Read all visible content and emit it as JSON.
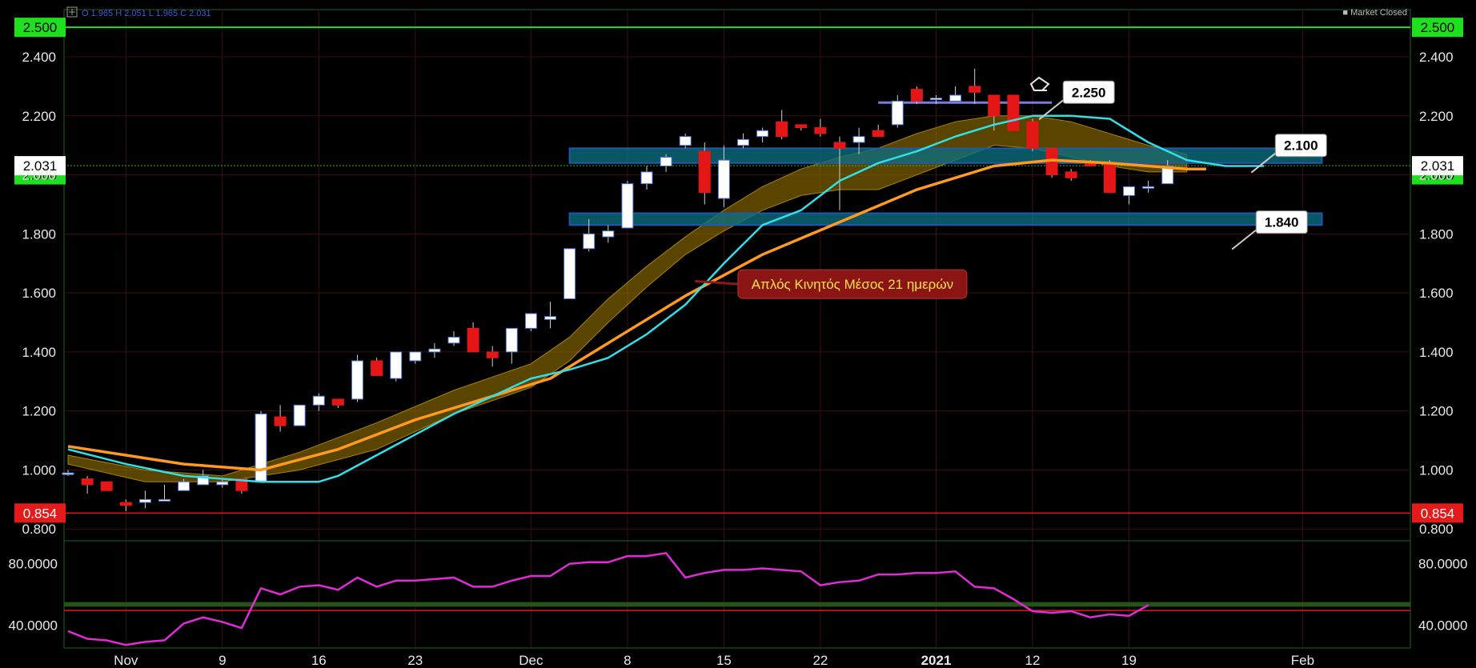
{
  "header": {
    "ohlc_text": "O 1.965  H 2.051  L 1.965  C 2.031",
    "status_text": "■ Market Closed"
  },
  "chart_data": {
    "type": "candlestick",
    "title": "",
    "price_axis": {
      "min": 0.76,
      "max": 2.56,
      "ticks": [
        "2.400",
        "2.200",
        "2.000",
        "1.800",
        "1.600",
        "1.400",
        "1.200",
        "1.000",
        "0.800"
      ]
    },
    "x_labels": [
      {
        "label": "Nov",
        "idx": 3
      },
      {
        "label": "9",
        "idx": 8
      },
      {
        "label": "16",
        "idx": 13
      },
      {
        "label": "23",
        "idx": 18
      },
      {
        "label": "Dec",
        "idx": 24
      },
      {
        "label": "8",
        "idx": 29
      },
      {
        "label": "15",
        "idx": 34
      },
      {
        "label": "22",
        "idx": 39
      },
      {
        "label": "2021",
        "idx": 45
      },
      {
        "label": "12",
        "idx": 50
      },
      {
        "label": "19",
        "idx": 55
      },
      {
        "label": "Feb",
        "idx": 64
      }
    ],
    "candles": [
      [
        0.99,
        1.0,
        0.98,
        0.99
      ],
      [
        0.97,
        0.98,
        0.92,
        0.95
      ],
      [
        0.96,
        0.96,
        0.93,
        0.93
      ],
      [
        0.89,
        0.9,
        0.86,
        0.88
      ],
      [
        0.89,
        0.93,
        0.87,
        0.9
      ],
      [
        0.9,
        0.95,
        0.9,
        0.9
      ],
      [
        0.93,
        0.97,
        0.93,
        0.96
      ],
      [
        0.95,
        1.0,
        0.95,
        0.98
      ],
      [
        0.95,
        0.97,
        0.94,
        0.96
      ],
      [
        0.97,
        0.97,
        0.92,
        0.93
      ],
      [
        0.96,
        1.2,
        0.96,
        1.19
      ],
      [
        1.18,
        1.22,
        1.13,
        1.15
      ],
      [
        1.15,
        1.22,
        1.15,
        1.22
      ],
      [
        1.22,
        1.26,
        1.2,
        1.25
      ],
      [
        1.24,
        1.24,
        1.21,
        1.22
      ],
      [
        1.24,
        1.39,
        1.23,
        1.37
      ],
      [
        1.37,
        1.38,
        1.32,
        1.32
      ],
      [
        1.31,
        1.4,
        1.3,
        1.4
      ],
      [
        1.37,
        1.4,
        1.36,
        1.4
      ],
      [
        1.4,
        1.43,
        1.38,
        1.41
      ],
      [
        1.43,
        1.47,
        1.42,
        1.45
      ],
      [
        1.48,
        1.5,
        1.4,
        1.4
      ],
      [
        1.4,
        1.42,
        1.35,
        1.38
      ],
      [
        1.4,
        1.48,
        1.36,
        1.48
      ],
      [
        1.48,
        1.53,
        1.47,
        1.53
      ],
      [
        1.51,
        1.57,
        1.48,
        1.52
      ],
      [
        1.58,
        1.75,
        1.58,
        1.75
      ],
      [
        1.75,
        1.85,
        1.74,
        1.8
      ],
      [
        1.79,
        1.83,
        1.77,
        1.81
      ],
      [
        1.82,
        1.98,
        1.82,
        1.97
      ],
      [
        1.97,
        2.03,
        1.95,
        2.01
      ],
      [
        2.03,
        2.07,
        2.01,
        2.06
      ],
      [
        2.1,
        2.14,
        2.09,
        2.13
      ],
      [
        2.08,
        2.11,
        1.9,
        1.94
      ],
      [
        1.92,
        2.1,
        1.89,
        2.05
      ],
      [
        2.1,
        2.14,
        2.09,
        2.12
      ],
      [
        2.13,
        2.16,
        2.11,
        2.15
      ],
      [
        2.18,
        2.22,
        2.12,
        2.13
      ],
      [
        2.17,
        2.17,
        2.15,
        2.16
      ],
      [
        2.16,
        2.19,
        2.13,
        2.14
      ],
      [
        2.11,
        2.13,
        1.88,
        2.09
      ],
      [
        2.11,
        2.16,
        2.07,
        2.13
      ],
      [
        2.15,
        2.17,
        2.13,
        2.13
      ],
      [
        2.17,
        2.27,
        2.16,
        2.25
      ],
      [
        2.29,
        2.3,
        2.24,
        2.25
      ],
      [
        2.26,
        2.27,
        2.24,
        2.26
      ],
      [
        2.25,
        2.3,
        2.25,
        2.27
      ],
      [
        2.3,
        2.36,
        2.24,
        2.28
      ],
      [
        2.27,
        2.27,
        2.15,
        2.2
      ],
      [
        2.27,
        2.27,
        2.15,
        2.15
      ],
      [
        2.18,
        2.19,
        2.08,
        2.09
      ],
      [
        2.09,
        2.09,
        1.99,
        2.0
      ],
      [
        2.01,
        2.02,
        1.98,
        1.99
      ],
      [
        2.04,
        2.05,
        2.03,
        2.03
      ],
      [
        2.04,
        2.05,
        1.94,
        1.94
      ],
      [
        1.93,
        1.96,
        1.9,
        1.96
      ],
      [
        1.96,
        1.98,
        1.94,
        1.96
      ],
      [
        1.97,
        2.05,
        1.97,
        2.03
      ]
    ],
    "ma_orange": [
      [
        0,
        1.08
      ],
      [
        3,
        1.05
      ],
      [
        6,
        1.02
      ],
      [
        10,
        1.0
      ],
      [
        14,
        1.07
      ],
      [
        18,
        1.17
      ],
      [
        22,
        1.25
      ],
      [
        25,
        1.31
      ],
      [
        28,
        1.43
      ],
      [
        32,
        1.59
      ],
      [
        36,
        1.73
      ],
      [
        40,
        1.84
      ],
      [
        44,
        1.95
      ],
      [
        48,
        2.03
      ],
      [
        51,
        2.05
      ],
      [
        54,
        2.04
      ],
      [
        58,
        2.02
      ],
      [
        59,
        2.02
      ]
    ],
    "ma_cyan": [
      [
        0,
        1.07
      ],
      [
        3,
        1.02
      ],
      [
        6,
        0.98
      ],
      [
        8,
        0.97
      ],
      [
        10,
        0.96
      ],
      [
        12,
        0.96
      ],
      [
        13,
        0.96
      ],
      [
        14,
        0.98
      ],
      [
        16,
        1.05
      ],
      [
        20,
        1.19
      ],
      [
        24,
        1.31
      ],
      [
        26,
        1.34
      ],
      [
        28,
        1.38
      ],
      [
        30,
        1.46
      ],
      [
        32,
        1.56
      ],
      [
        34,
        1.7
      ],
      [
        36,
        1.83
      ],
      [
        38,
        1.88
      ],
      [
        40,
        1.98
      ],
      [
        42,
        2.04
      ],
      [
        44,
        2.08
      ],
      [
        46,
        2.13
      ],
      [
        48,
        2.17
      ],
      [
        50,
        2.2
      ],
      [
        52,
        2.2
      ],
      [
        54,
        2.19
      ],
      [
        56,
        2.11
      ],
      [
        58,
        2.05
      ],
      [
        60,
        2.03
      ],
      [
        62,
        2.03
      ]
    ],
    "ribbon_upper": [
      [
        0,
        1.05
      ],
      [
        4,
        1.0
      ],
      [
        8,
        0.98
      ],
      [
        12,
        1.06
      ],
      [
        16,
        1.16
      ],
      [
        20,
        1.27
      ],
      [
        24,
        1.36
      ],
      [
        26,
        1.45
      ],
      [
        28,
        1.58
      ],
      [
        30,
        1.69
      ],
      [
        32,
        1.79
      ],
      [
        34,
        1.88
      ],
      [
        36,
        1.96
      ],
      [
        38,
        2.02
      ],
      [
        40,
        2.06
      ],
      [
        42,
        2.09
      ],
      [
        44,
        2.14
      ],
      [
        46,
        2.18
      ],
      [
        48,
        2.2
      ],
      [
        50,
        2.2
      ],
      [
        52,
        2.18
      ],
      [
        54,
        2.14
      ],
      [
        56,
        2.1
      ],
      [
        58,
        2.07
      ]
    ],
    "ribbon_lower": [
      [
        0,
        1.02
      ],
      [
        4,
        0.96
      ],
      [
        8,
        0.96
      ],
      [
        12,
        1.0
      ],
      [
        16,
        1.07
      ],
      [
        20,
        1.19
      ],
      [
        24,
        1.28
      ],
      [
        26,
        1.37
      ],
      [
        28,
        1.5
      ],
      [
        30,
        1.62
      ],
      [
        32,
        1.73
      ],
      [
        34,
        1.81
      ],
      [
        36,
        1.88
      ],
      [
        38,
        1.93
      ],
      [
        40,
        1.95
      ],
      [
        42,
        1.95
      ],
      [
        44,
        2.0
      ],
      [
        46,
        2.05
      ],
      [
        48,
        2.1
      ],
      [
        50,
        2.09
      ],
      [
        52,
        2.06
      ],
      [
        54,
        2.03
      ],
      [
        56,
        2.01
      ],
      [
        58,
        2.01
      ]
    ],
    "levels": {
      "green": {
        "value": 2.5,
        "label": "2.500"
      },
      "green_low": {
        "value": 2.0,
        "label": "2.000"
      },
      "red": {
        "value": 0.854,
        "label": "0.854"
      },
      "current": {
        "value": 2.031,
        "label": "2.031"
      }
    },
    "zones": [
      {
        "low": 2.04,
        "high": 2.09,
        "from": 26,
        "to": 65
      },
      {
        "low": 1.83,
        "high": 1.87,
        "from": 26,
        "to": 65
      }
    ],
    "resistance_line": {
      "value": 2.245,
      "from": 42,
      "to": 51
    },
    "callouts": [
      {
        "label": "2.250",
        "idx": 52,
        "value": 2.28
      },
      {
        "label": "2.100",
        "idx": 63,
        "value": 2.1
      },
      {
        "label": "1.840",
        "idx": 62,
        "value": 1.84
      }
    ],
    "annotation": {
      "text": "Απλός Κινητός Μέσος 21 ημερών",
      "idx": 39.5,
      "value": 1.63,
      "target_idx": 32.5,
      "target_value": 1.64
    },
    "oscillator": {
      "min": 25,
      "max": 95,
      "ticks": [
        "80.0000",
        "40.0000"
      ],
      "band": [
        52,
        55
      ],
      "redline": 49.5,
      "values": [
        [
          0,
          36
        ],
        [
          1,
          31
        ],
        [
          2,
          30
        ],
        [
          3,
          27
        ],
        [
          4,
          29
        ],
        [
          5,
          30
        ],
        [
          6,
          41
        ],
        [
          7,
          45
        ],
        [
          8,
          42
        ],
        [
          9,
          38
        ],
        [
          10,
          64
        ],
        [
          11,
          60
        ],
        [
          12,
          65
        ],
        [
          13,
          66
        ],
        [
          14,
          63
        ],
        [
          15,
          71
        ],
        [
          16,
          65
        ],
        [
          17,
          69
        ],
        [
          18,
          69
        ],
        [
          19,
          70
        ],
        [
          20,
          71
        ],
        [
          21,
          65
        ],
        [
          22,
          65
        ],
        [
          23,
          69
        ],
        [
          24,
          72
        ],
        [
          25,
          72
        ],
        [
          26,
          80
        ],
        [
          27,
          81
        ],
        [
          28,
          81
        ],
        [
          29,
          85
        ],
        [
          30,
          85
        ],
        [
          31,
          87
        ],
        [
          32,
          71
        ],
        [
          33,
          74
        ],
        [
          34,
          76
        ],
        [
          35,
          76
        ],
        [
          36,
          77
        ],
        [
          37,
          76
        ],
        [
          38,
          75
        ],
        [
          39,
          66
        ],
        [
          40,
          68
        ],
        [
          41,
          69
        ],
        [
          42,
          73
        ],
        [
          43,
          73
        ],
        [
          44,
          74
        ],
        [
          45,
          74
        ],
        [
          46,
          75
        ],
        [
          47,
          65
        ],
        [
          48,
          64
        ],
        [
          49,
          57
        ],
        [
          50,
          49
        ],
        [
          51,
          48
        ],
        [
          52,
          49
        ],
        [
          53,
          45
        ],
        [
          54,
          47
        ],
        [
          55,
          46
        ],
        [
          56,
          53
        ]
      ]
    }
  }
}
